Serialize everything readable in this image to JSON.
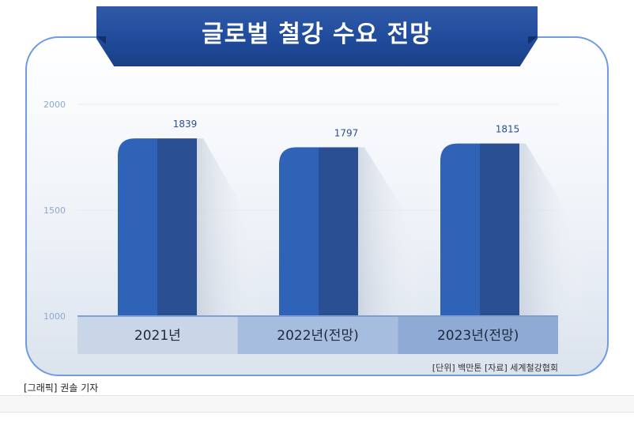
{
  "chart_data": {
    "type": "bar",
    "title": "글로벌 철강 수요 전망",
    "categories": [
      "2021년",
      "2022년(전망)",
      "2023년(전망)"
    ],
    "values": [
      1839,
      1797,
      1815
    ],
    "ylim": [
      1000,
      2000
    ],
    "yticks": [
      "2000",
      "1500",
      "1000"
    ],
    "value_labels": [
      "1839",
      "1797",
      "1815"
    ],
    "grid": true,
    "colors": {
      "bar_light": "#2e63b8",
      "bar_dark": "#2b4f93",
      "axis_band": [
        "#c9d6e8",
        "#a6bddf",
        "#8faad5"
      ]
    }
  },
  "source_note": "[단위] 백만톤  [자료] 세계철강협회",
  "credit": "[그래픽] 권솔 기자"
}
